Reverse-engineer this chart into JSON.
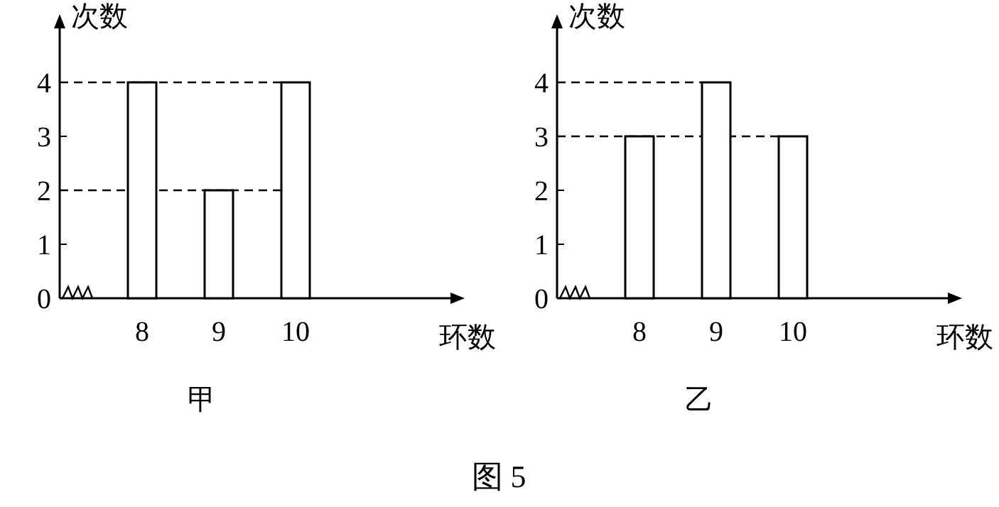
{
  "chart_data": [
    {
      "type": "bar",
      "title": "甲",
      "xlabel": "环数",
      "ylabel": "次数",
      "categories": [
        "8",
        "9",
        "10"
      ],
      "series": [
        {
          "color": "#ffffff",
          "values": [
            4,
            2,
            4
          ]
        }
      ],
      "ylim": [
        0,
        5
      ],
      "yticks": [
        0,
        1,
        2,
        3,
        4
      ],
      "ref_lines": [
        {
          "axis": "y",
          "value": 4,
          "line_style": "dashed"
        },
        {
          "axis": "y",
          "value": 2,
          "line_style": "dashed"
        }
      ]
    },
    {
      "type": "bar",
      "title": "乙",
      "xlabel": "环数",
      "ylabel": "次数",
      "categories": [
        "8",
        "9",
        "10"
      ],
      "series": [
        {
          "color": "#ffffff",
          "values": [
            3,
            4,
            3
          ]
        }
      ],
      "ylim": [
        0,
        5
      ],
      "yticks": [
        0,
        1,
        2,
        3,
        4
      ],
      "ref_lines": [
        {
          "axis": "y",
          "value": 4,
          "line_style": "dashed"
        },
        {
          "axis": "y",
          "value": 3,
          "line_style": "dashed"
        }
      ],
      "annotations": [
        "图 5"
      ]
    }
  ]
}
